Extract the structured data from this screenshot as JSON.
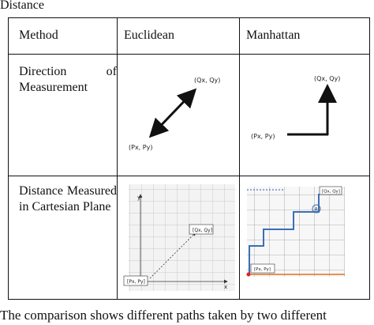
{
  "heading_fragment": "Distance",
  "table": {
    "header": [
      "Method",
      "Euclidean",
      "Manhattan"
    ],
    "rows": [
      {
        "label": "Direction of Measurement",
        "euclidean": {
          "start": "(Px, Py)",
          "end": "(Qx, Qy)"
        },
        "manhattan": {
          "start": "(Px, Py)",
          "end": "(Qx, Qy)"
        }
      },
      {
        "label": "Distance Measured in Cartesian Plane",
        "euclidean": {
          "start": "[Px, Py]",
          "end": "[Qx, Qy]",
          "x_axis": "x",
          "y_axis": "y"
        },
        "manhattan": {
          "start": "[Px, Py]",
          "end": "[Qx, Qy]",
          "marker": "A"
        }
      }
    ]
  },
  "caption": "The comparison shows different paths taken by two different"
}
